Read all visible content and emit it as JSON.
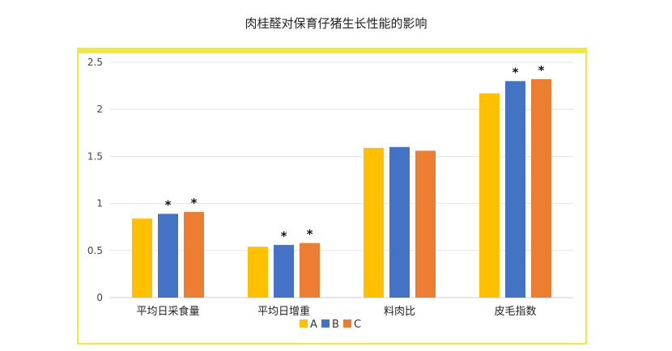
{
  "chart_data": {
    "type": "bar",
    "title": "肉桂醛对保育仔猪生长性能的影响",
    "categories": [
      "平均日采食量",
      "平均日增重",
      "料肉比",
      "皮毛指数"
    ],
    "series": [
      {
        "name": "A",
        "values": [
          0.84,
          0.54,
          1.59,
          2.17
        ],
        "color": "#ffc000"
      },
      {
        "name": "B",
        "values": [
          0.89,
          0.56,
          1.6,
          2.3
        ],
        "color": "#4472c4"
      },
      {
        "name": "C",
        "values": [
          0.91,
          0.58,
          1.56,
          2.32
        ],
        "color": "#ed7d31"
      }
    ],
    "significance": [
      {
        "category": 0,
        "series": 1,
        "mark": "*"
      },
      {
        "category": 0,
        "series": 2,
        "mark": "*"
      },
      {
        "category": 1,
        "series": 1,
        "mark": "*"
      },
      {
        "category": 1,
        "series": 2,
        "mark": "*"
      },
      {
        "category": 3,
        "series": 1,
        "mark": "*"
      },
      {
        "category": 3,
        "series": 2,
        "mark": "*"
      }
    ],
    "ylim": [
      0,
      2.5
    ],
    "yticks": [
      "0",
      "0.5",
      "1",
      "1.5",
      "2",
      "2.5"
    ],
    "grid": true,
    "legend_position": "bottom",
    "frame_color": "#f2ea3a"
  }
}
